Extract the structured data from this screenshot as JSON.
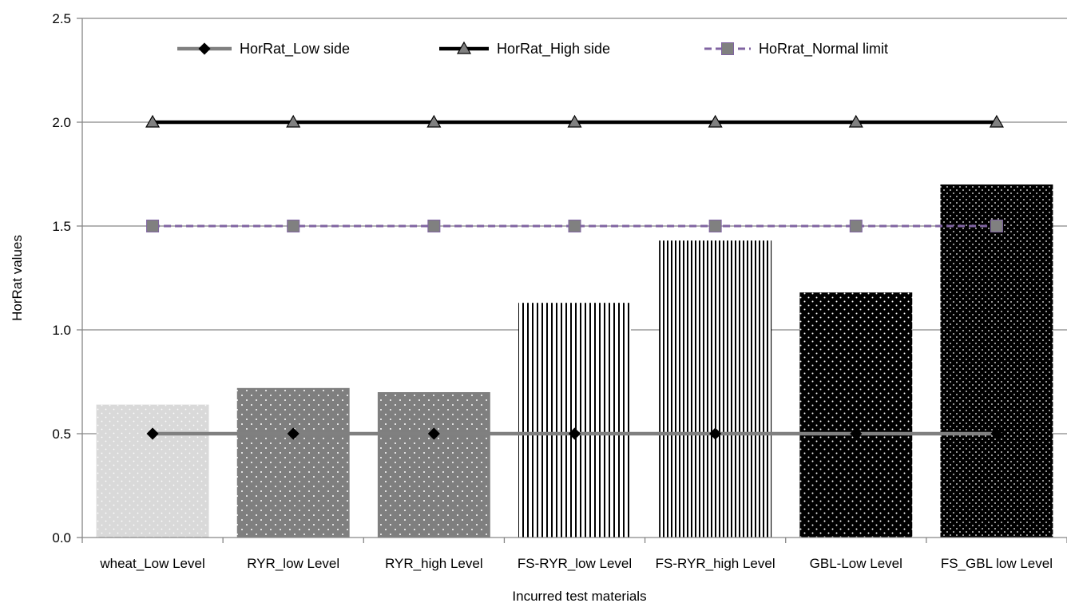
{
  "chart_data": {
    "type": "bar",
    "categories": [
      "wheat_Low Level",
      "RYR_low Level",
      "RYR_high Level",
      "FS-RYR_low Level",
      "FS-RYR_high Level",
      "GBL-Low Level",
      "FS_GBL low Level"
    ],
    "values": [
      0.64,
      0.72,
      0.7,
      1.13,
      1.43,
      1.18,
      1.7
    ],
    "bar_colors": [
      "#d9d9d9",
      "#7f7f7f",
      "#7f7f7f",
      "#ffffff",
      "#ffffff",
      "#000000",
      "#000000"
    ],
    "bar_patterns": [
      "dots-light",
      "dots-gray",
      "dots-gray",
      "vertical-lines",
      "vertical-lines-dense",
      "dots-dark",
      "dots-dark-dense"
    ],
    "lines": [
      {
        "name": "HorRat_Low side",
        "values": [
          0.5,
          0.5,
          0.5,
          0.5,
          0.5,
          0.5,
          0.5
        ],
        "color": "#808080",
        "marker": "diamond",
        "marker_color": "#000000",
        "dash": "solid"
      },
      {
        "name": "HorRat_High side",
        "values": [
          2.0,
          2.0,
          2.0,
          2.0,
          2.0,
          2.0,
          2.0
        ],
        "color": "#000000",
        "marker": "triangle",
        "marker_color": "#808080",
        "dash": "solid"
      },
      {
        "name": "HoRrat_Normal limit",
        "values": [
          1.5,
          1.5,
          1.5,
          1.5,
          1.5,
          1.5,
          1.5
        ],
        "color": "#8064a2",
        "marker": "square",
        "marker_color": "#808080",
        "dash": "dashed"
      }
    ],
    "ylim": [
      0,
      2.5
    ],
    "yticks": [
      "0.0",
      "0.5",
      "1.0",
      "1.5",
      "2.0",
      "2.5"
    ],
    "ytick_values": [
      0,
      0.5,
      1.0,
      1.5,
      2.0,
      2.5
    ],
    "xlabel": "Incurred test materials",
    "ylabel": "HorRat values",
    "grid": true,
    "legend_position": "top"
  }
}
